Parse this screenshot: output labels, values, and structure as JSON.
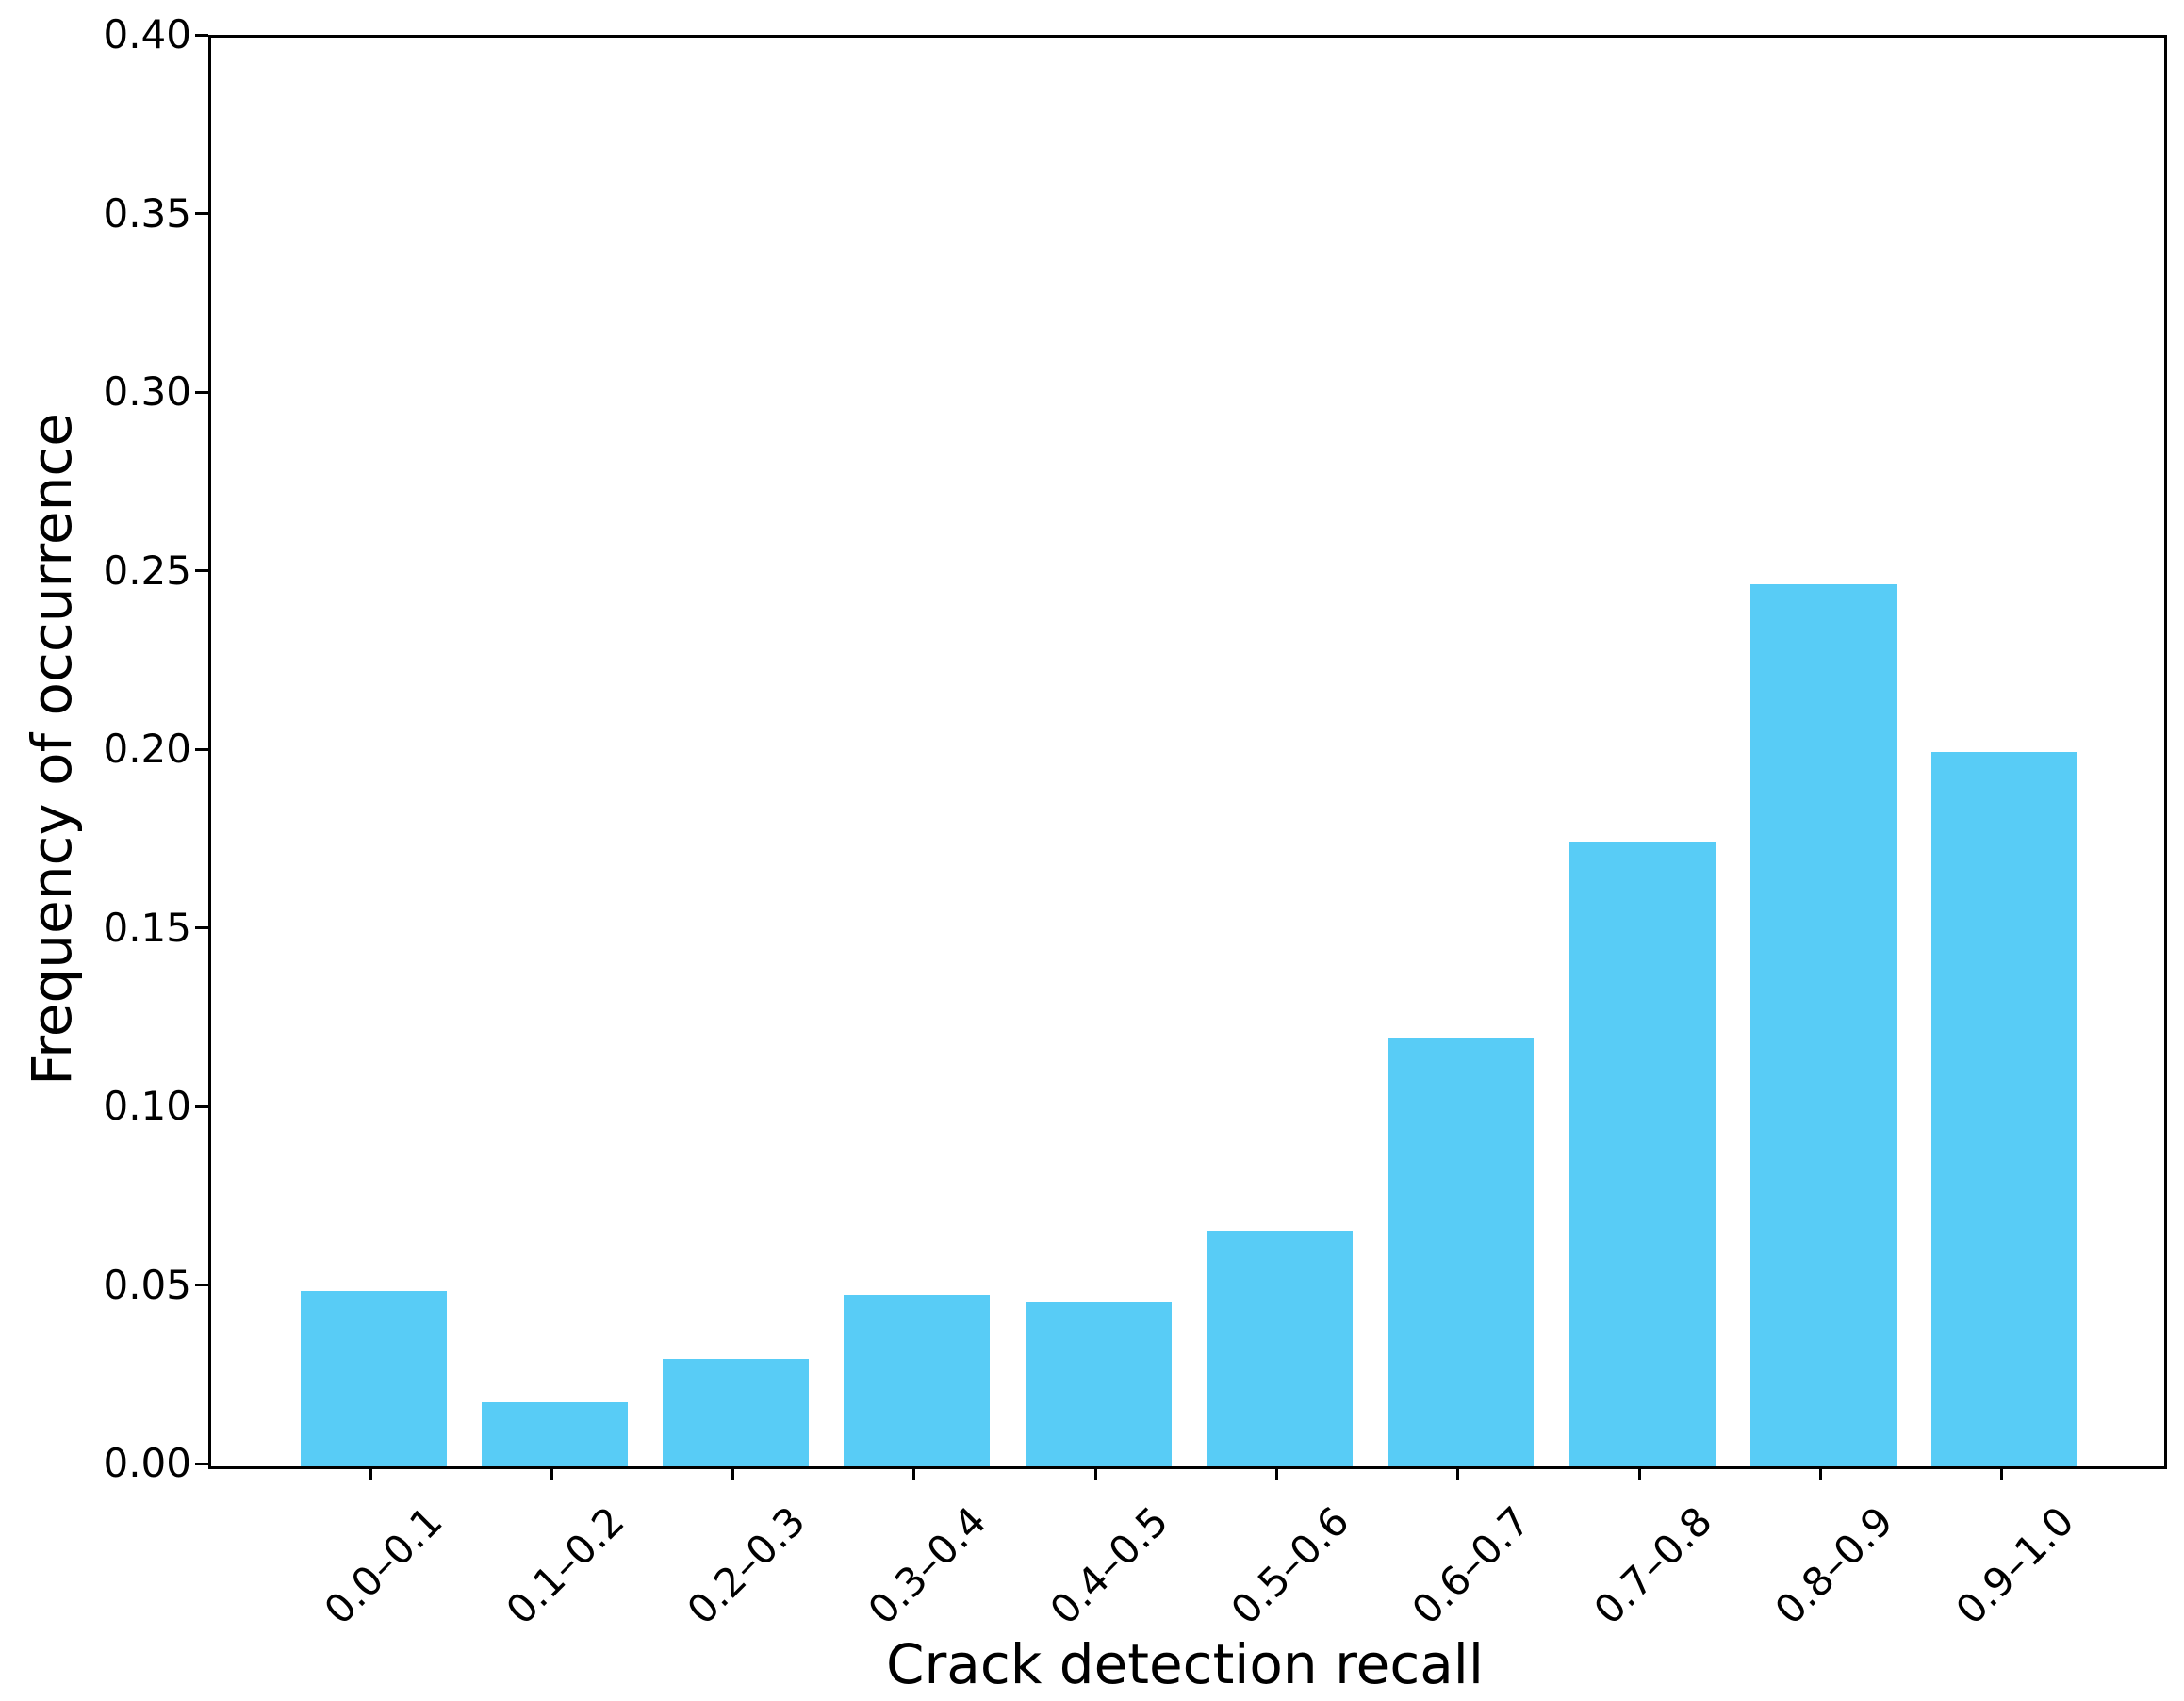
{
  "chart_data": {
    "type": "bar",
    "title": "",
    "xlabel": "Crack detection recall",
    "ylabel": "Frequency of occurrence",
    "categories": [
      "0.0–0.1",
      "0.1–0.2",
      "0.2–0.3",
      "0.3–0.4",
      "0.4–0.5",
      "0.5–0.6",
      "0.6–0.7",
      "0.7–0.8",
      "0.8–0.9",
      "0.9–1.0"
    ],
    "values": [
      0.049,
      0.018,
      0.03,
      0.048,
      0.046,
      0.066,
      0.12,
      0.175,
      0.247,
      0.2
    ],
    "ylim": [
      0.0,
      0.4
    ],
    "ytick_labels": [
      "0.00",
      "0.05",
      "0.10",
      "0.15",
      "0.20",
      "0.25",
      "0.30",
      "0.35",
      "0.40"
    ],
    "grid": false,
    "legend": null,
    "bar_color": "#58CCF6",
    "axis_color": "#000000",
    "text_color": "#000000"
  }
}
